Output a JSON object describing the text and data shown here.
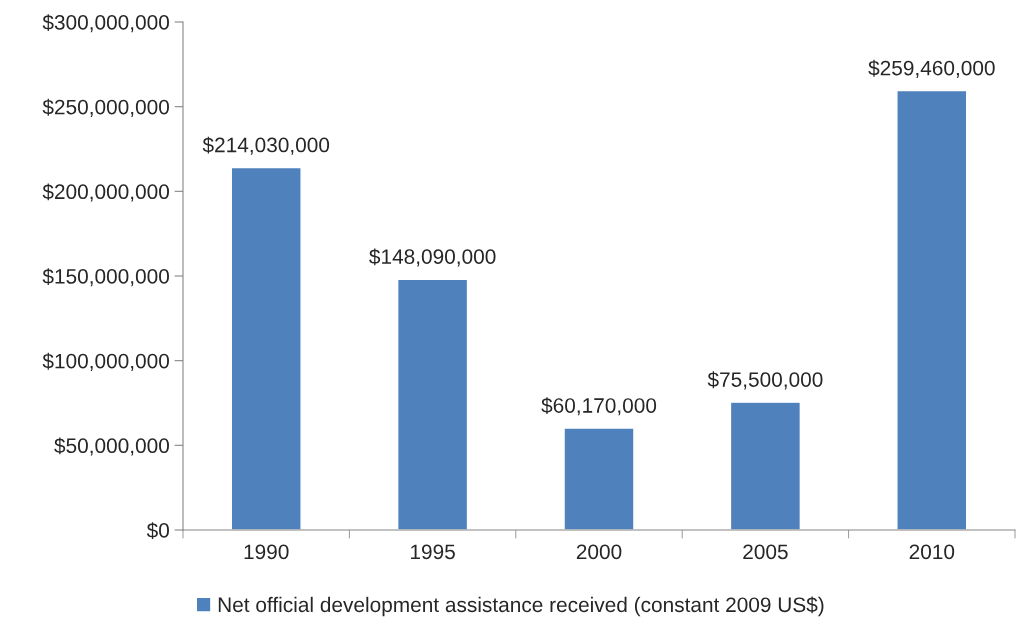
{
  "chart_data": {
    "type": "bar",
    "categories": [
      "1990",
      "1995",
      "2000",
      "2005",
      "2010"
    ],
    "series": [
      {
        "name": "Net official development assistance received (constant 2009 US$)",
        "color": "#4f81bd",
        "values": [
          214030000,
          148090000,
          60170000,
          75500000,
          259460000
        ],
        "value_labels": [
          "$214,030,000",
          "$148,090,000",
          "$60,170,000",
          "$75,500,000",
          "$259,460,000"
        ]
      }
    ],
    "ylim": [
      0,
      300000000
    ],
    "yticks": [
      {
        "value": 0,
        "label": "$0"
      },
      {
        "value": 50000000,
        "label": "$50,000,000"
      },
      {
        "value": 100000000,
        "label": "$100,000,000"
      },
      {
        "value": 150000000,
        "label": "$150,000,000"
      },
      {
        "value": 200000000,
        "label": "$200,000,000"
      },
      {
        "value": 250000000,
        "label": "$250,000,000"
      },
      {
        "value": 300000000,
        "label": "$300,000,000"
      }
    ],
    "grid": false,
    "legend": "bottom"
  }
}
